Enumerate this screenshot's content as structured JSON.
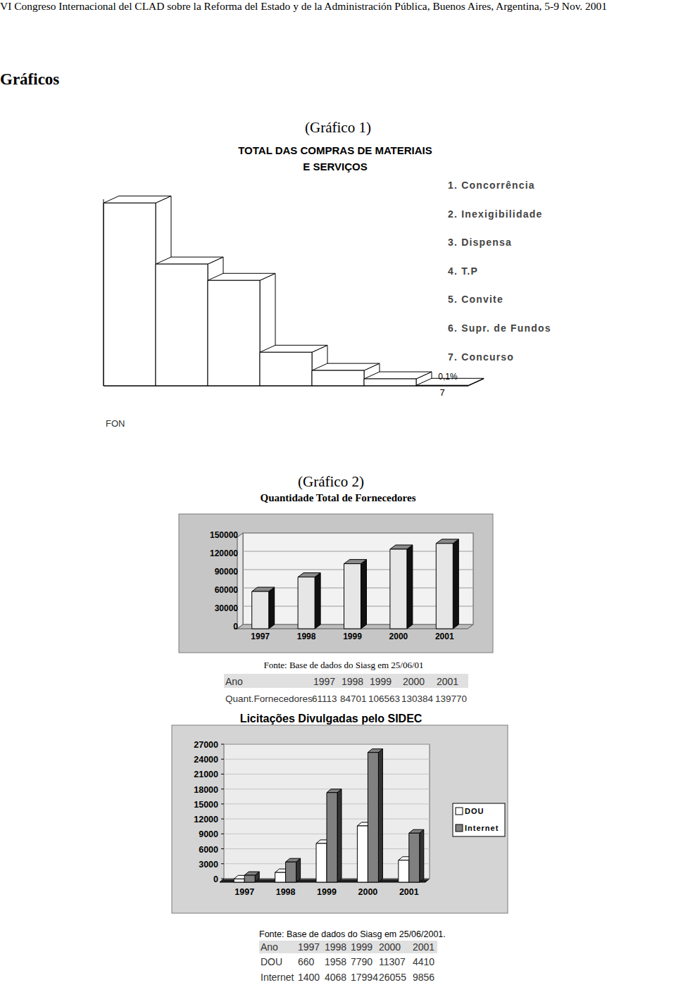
{
  "header": "VI Congreso Internacional del CLAD sobre la Reforma del Estado y de la Administración Pública, Buenos Aires, Argentina, 5-9 Nov. 2001",
  "heading": "Gráficos",
  "chart_data": [
    {
      "caption": "(Gráfico 1)",
      "type": "bar",
      "title": [
        "TOTAL DAS COMPRAS  DE MATERIAIS",
        "E SERVIÇOS"
      ],
      "categories": [
        null,
        null,
        null,
        null,
        null,
        null,
        "7"
      ],
      "values": [
        39.2,
        26.1,
        22.6,
        7.2,
        3.3,
        1.5,
        0.1
      ],
      "value_labels": [
        null,
        null,
        null,
        null,
        null,
        null,
        "0,1%"
      ],
      "data_labels": true,
      "color": "#ffffff",
      "ylim": [
        0,
        40
      ],
      "tick_labels": "x",
      "annotations": [
        "1. Concorrência",
        "2. Inexigibilidade",
        "3. Dispensa",
        "4. T.P",
        "5. Convite",
        "6. Supr. de Fundos",
        "7. Concurso"
      ],
      "source": "FON"
    },
    {
      "caption": "(Gráfico 2)",
      "type": "bar",
      "title": "Quantidade Total de Fornecedores",
      "categories": [
        "1997",
        "1998",
        "1999",
        "2000",
        "2001"
      ],
      "values": [
        61113,
        84701,
        106563,
        130384,
        139770
      ],
      "color": "#e6e6e6",
      "ylim": [
        0,
        150000
      ],
      "yticks": [
        0,
        30000,
        60000,
        90000,
        120000,
        150000
      ],
      "grid": true,
      "source": "Fonte: Base de dados do Siasg em 25/06/01",
      "table": {
        "header": "Ano",
        "row_labels": [
          "Quant.Fornecedores"
        ]
      }
    },
    {
      "type": "bar",
      "title": "Licitações Divulgadas pelo SIDEC",
      "categories": [
        "1997",
        "1998",
        "1999",
        "2000",
        "2001"
      ],
      "series": [
        {
          "name": "DOU",
          "color": "#ffffff",
          "values": [
            660,
            1958,
            7790,
            11307,
            4410
          ]
        },
        {
          "name": "Internet",
          "color": "#808080",
          "values": [
            1400,
            4068,
            17994,
            26055,
            9856
          ]
        }
      ],
      "ylim": [
        0,
        27000
      ],
      "yticks": [
        0,
        3000,
        6000,
        9000,
        12000,
        15000,
        18000,
        21000,
        24000,
        27000
      ],
      "grid": true,
      "legend": "right",
      "source": "Fonte: Base de dados do Siasg em 25/06/2001.",
      "table": {
        "header": "Ano"
      }
    }
  ]
}
